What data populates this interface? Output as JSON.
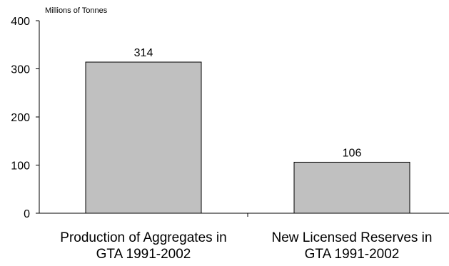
{
  "chart_data": {
    "type": "bar",
    "categories": [
      [
        "Production of Aggregates in",
        "GTA 1991-2002"
      ],
      [
        "New Licensed Reserves in",
        "GTA 1991-2002"
      ]
    ],
    "values": [
      314,
      106
    ],
    "data_labels": [
      "314",
      "106"
    ],
    "y_unit_label": "Millions of Tonnes",
    "ylim": [
      0,
      400
    ],
    "yticks": [
      0,
      100,
      200,
      300,
      400
    ],
    "ytick_labels": [
      "0",
      "100",
      "200",
      "300",
      "400"
    ],
    "grid": false,
    "legend": "none",
    "bar_color": "#c0c0c0",
    "bar_edge_color": "#000000"
  }
}
